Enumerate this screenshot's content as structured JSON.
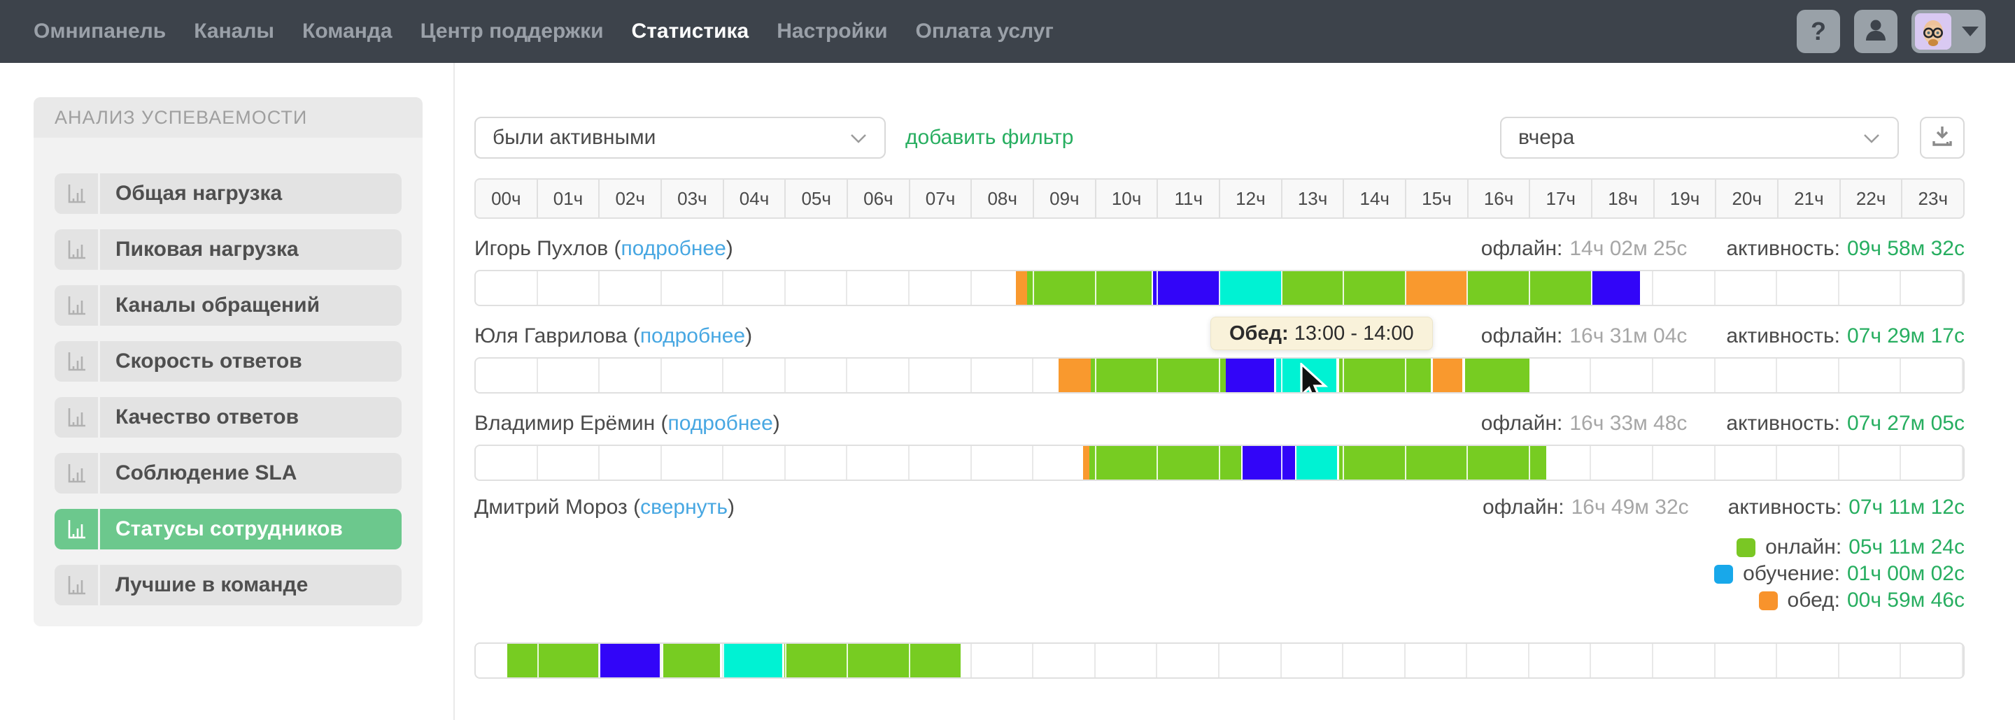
{
  "nav": {
    "items": [
      {
        "label": "Омнипанель",
        "active": false
      },
      {
        "label": "Каналы",
        "active": false
      },
      {
        "label": "Команда",
        "active": false
      },
      {
        "label": "Центр поддержки",
        "active": false
      },
      {
        "label": "Статистика",
        "active": true
      },
      {
        "label": "Настройки",
        "active": false
      },
      {
        "label": "Оплата услуг",
        "active": false
      }
    ],
    "help_label": "?",
    "icons": {
      "help": "question-mark",
      "account": "user-icon",
      "avatar": "memoji-avatar",
      "caret": "chevron-down-icon"
    }
  },
  "sidebar": {
    "title": "АНАЛИЗ УСПЕВАЕМОСТИ",
    "item_icon": "bar-chart-icon",
    "items": [
      {
        "label": "Общая нагрузка",
        "active": false
      },
      {
        "label": "Пиковая нагрузка",
        "active": false
      },
      {
        "label": "Каналы обращений",
        "active": false
      },
      {
        "label": "Скорость ответов",
        "active": false
      },
      {
        "label": "Качество ответов",
        "active": false
      },
      {
        "label": "Соблюдение SLA",
        "active": false
      },
      {
        "label": "Статусы сотрудников",
        "active": true
      },
      {
        "label": "Лучшие в команде",
        "active": false
      }
    ],
    "active_color": "#6cc88d"
  },
  "toolbar": {
    "activity_filter": "были активными",
    "add_filter_label": "добавить фильтр",
    "period_filter": "вчера",
    "download_icon": "download-icon"
  },
  "timeline": {
    "hours": [
      "00ч",
      "01ч",
      "02ч",
      "03ч",
      "04ч",
      "05ч",
      "06ч",
      "07ч",
      "08ч",
      "09ч",
      "10ч",
      "11ч",
      "12ч",
      "13ч",
      "14ч",
      "15ч",
      "16ч",
      "17ч",
      "18ч",
      "19ч",
      "20ч",
      "21ч",
      "22ч",
      "23ч"
    ],
    "colors": {
      "green": "#77cc22",
      "blue": "#3205f8",
      "cyan": "#00f2d3",
      "orange": "#f9992e"
    }
  },
  "chart_data": {
    "type": "heatmap",
    "note": "hourly status timelines per employee, hours 0-24",
    "employees": [
      {
        "name": "Игорь Пухлов",
        "link": "подробнее",
        "offline_label": "офлайн:",
        "offline": "14ч 02м 25с",
        "activity_label": "активность:",
        "activity": "09ч 58м 32с",
        "segments": [
          {
            "start": 8.72,
            "end": 8.9,
            "color": "orange"
          },
          {
            "start": 8.9,
            "end": 10.9,
            "color": "green"
          },
          {
            "start": 10.93,
            "end": 12.0,
            "color": "blue"
          },
          {
            "start": 12.0,
            "end": 13.0,
            "color": "cyan"
          },
          {
            "start": 13.0,
            "end": 15.0,
            "color": "green"
          },
          {
            "start": 15.0,
            "end": 16.0,
            "color": "orange"
          },
          {
            "start": 16.0,
            "end": 18.0,
            "color": "green"
          },
          {
            "start": 18.0,
            "end": 18.78,
            "color": "blue"
          }
        ]
      },
      {
        "name": "Юля Гаврилова",
        "link": "подробнее",
        "offline_label": "офлайн:",
        "offline": "16ч 31м 04с",
        "activity_label": "активность:",
        "activity": "07ч 29м 17с",
        "tooltip": {
          "label": "Обед:",
          "text": "13:00 - 14:00"
        },
        "cursor_hour": 13.35,
        "segments": [
          {
            "start": 9.4,
            "end": 9.92,
            "color": "orange"
          },
          {
            "start": 9.92,
            "end": 12.1,
            "color": "green"
          },
          {
            "start": 12.1,
            "end": 12.88,
            "color": "blue"
          },
          {
            "start": 12.91,
            "end": 13.89,
            "color": "cyan"
          },
          {
            "start": 13.93,
            "end": 15.41,
            "color": "green"
          },
          {
            "start": 15.44,
            "end": 15.92,
            "color": "orange"
          },
          {
            "start": 15.96,
            "end": 17.0,
            "color": "green"
          }
        ]
      },
      {
        "name": "Владимир Ерёмин",
        "link": "подробнее",
        "offline_label": "офлайн:",
        "offline": "16ч 33м 48с",
        "activity_label": "активность:",
        "activity": "07ч 27м 05с",
        "segments": [
          {
            "start": 9.8,
            "end": 9.9,
            "color": "orange"
          },
          {
            "start": 9.9,
            "end": 12.35,
            "color": "green"
          },
          {
            "start": 12.37,
            "end": 13.22,
            "color": "blue"
          },
          {
            "start": 13.24,
            "end": 13.9,
            "color": "cyan"
          },
          {
            "start": 13.93,
            "end": 17.27,
            "color": "green"
          }
        ]
      },
      {
        "name": "Дмитрий Мороз",
        "link": "свернуть",
        "expanded": true,
        "offline_label": "офлайн:",
        "offline": "16ч 49м 32с",
        "activity_label": "активность:",
        "activity": "07ч 11м 12с",
        "legend": [
          {
            "label": "онлайн:",
            "value": "05ч 11м 24с",
            "color": "#7ac724"
          },
          {
            "label": "обучение:",
            "value": "01ч 00м 02с",
            "color": "#18a8ea"
          },
          {
            "label": "обед:",
            "value": "00ч 59м 46с",
            "color": "#f8932c"
          }
        ],
        "segments": [
          {
            "start": 0.51,
            "end": 1.97,
            "color": "green"
          },
          {
            "start": 2.01,
            "end": 2.97,
            "color": "blue"
          },
          {
            "start": 3.02,
            "end": 3.94,
            "color": "green"
          },
          {
            "start": 3.99,
            "end": 4.94,
            "color": "cyan"
          },
          {
            "start": 4.98,
            "end": 7.82,
            "color": "green"
          }
        ]
      }
    ]
  }
}
